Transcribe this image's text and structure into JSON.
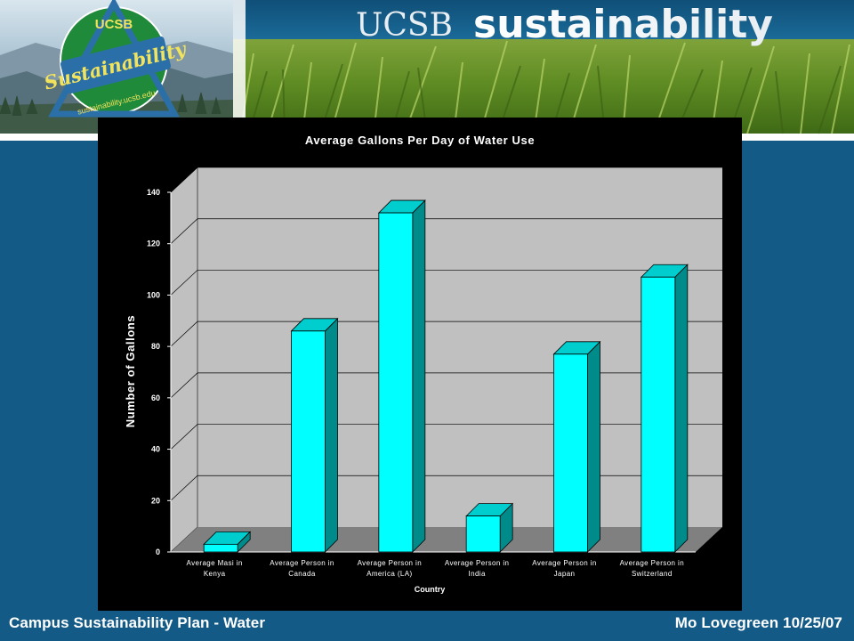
{
  "header": {
    "logo_top_text": "UCSB",
    "logo_main_text": "Sustainability",
    "logo_url_text": "sustainability.ucsb.edu",
    "brand_prefix": "UCSB",
    "brand_word": "sustainability"
  },
  "footer": {
    "left": "Campus Sustainability Plan - Water",
    "right": "Mo Lovegreen 10/25/07"
  },
  "colors": {
    "background": "#145a86",
    "bar_front": "#00ffff",
    "bar_side": "#008b8b",
    "bar_top": "#00cdcd",
    "wall": "#c0c0c0",
    "floor": "#808080"
  },
  "chart_data": {
    "type": "bar",
    "title": "Average Gallons Per Day of Water Use",
    "xlabel": "Country",
    "ylabel": "Number of Gallons",
    "ylim": [
      0,
      140
    ],
    "yticks": [
      0,
      20,
      40,
      60,
      80,
      100,
      120,
      140
    ],
    "grid": true,
    "three_d": true,
    "categories": [
      [
        "Average Masi in",
        "Kenya"
      ],
      [
        "Average Person in",
        "Canada"
      ],
      [
        "Average Person in",
        "America (LA)"
      ],
      [
        "Average Person in",
        "India"
      ],
      [
        "Average Person in",
        "Japan"
      ],
      [
        "Average Person in",
        "Switzerland"
      ]
    ],
    "values": [
      3,
      86,
      132,
      14,
      77,
      107
    ]
  }
}
